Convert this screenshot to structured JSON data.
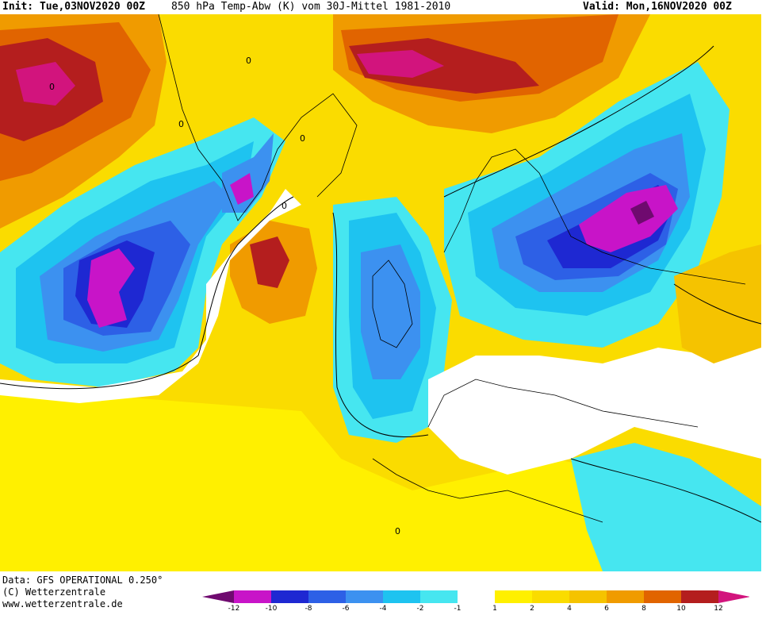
{
  "header": {
    "init": "Init: Tue,03NOV2020 00Z",
    "title": "850 hPa Temp-Abw (K) vom 30J-Mittel 1981-2010",
    "valid": "Valid: Mon,16NOV2020 00Z"
  },
  "footer": {
    "data_source": "Data: GFS OPERATIONAL 0.250°",
    "copyright": "(C) Wetterzentrale",
    "url": "www.wetterzentrale.de"
  },
  "legend": {
    "ticks": [
      "-12",
      "-10",
      "-8",
      "-6",
      "-4",
      "-2",
      "-1",
      "1",
      "2",
      "4",
      "6",
      "8",
      "10",
      "12"
    ],
    "colors": {
      "lt_m12": "#6f0a6f",
      "m12_m10": "#c814c8",
      "m10_m8": "#1e28d2",
      "m8_m6": "#2d60e6",
      "m6_m4": "#3c91f0",
      "m4_m2": "#1ec3f0",
      "m2_m1": "#46e6f0",
      "m1_1": "#ffffff",
      "p1_p2": "#fff000",
      "p2_p4": "#fadc00",
      "p4_p6": "#f5c300",
      "p6_p8": "#f09b00",
      "p8_p10": "#e16400",
      "p10_p12": "#b41e1e",
      "gt_p12": "#d2147d"
    }
  },
  "map": {
    "contour_labels": [
      "0",
      "0",
      "0",
      "0",
      "0",
      "0"
    ]
  }
}
